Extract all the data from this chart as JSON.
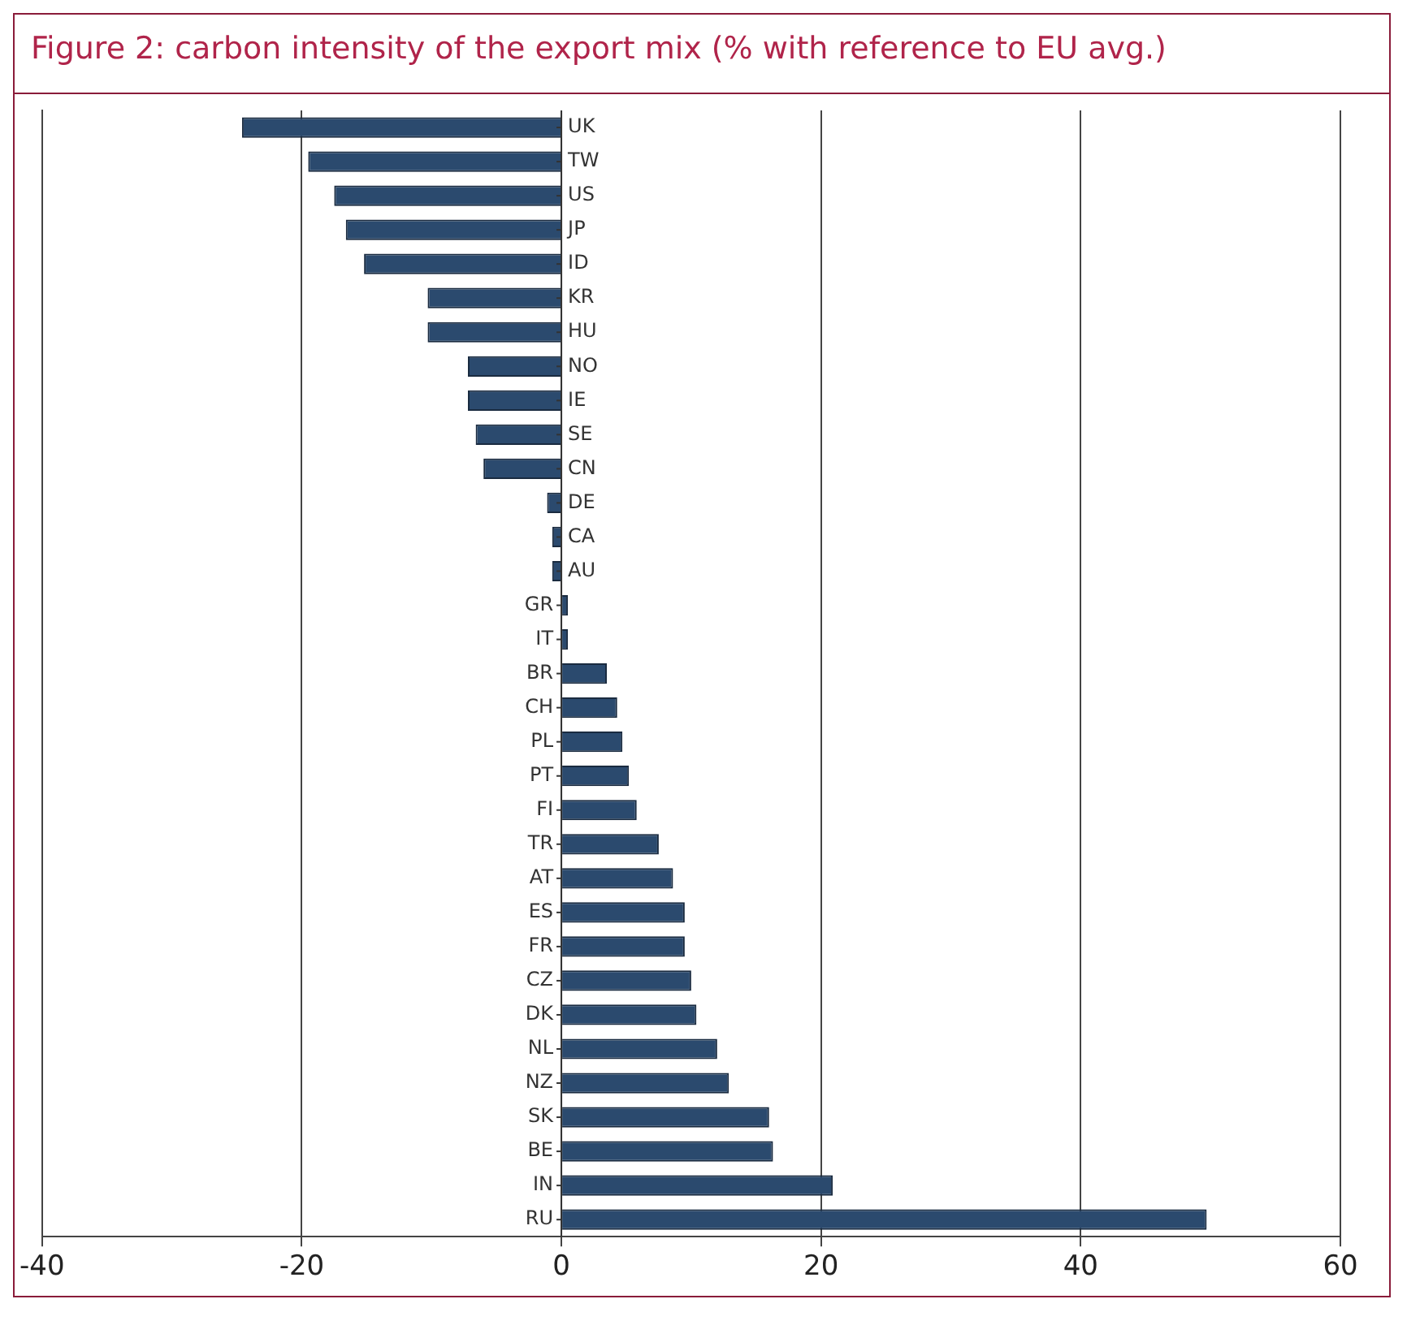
{
  "chart_data": {
    "type": "bar",
    "orientation": "horizontal",
    "title": "Figure 2: carbon intensity of the export mix (% with reference to EU avg.)",
    "categories": [
      "UK",
      "TW",
      "US",
      "JP",
      "ID",
      "KR",
      "HU",
      "NO",
      "IE",
      "SE",
      "CN",
      "DE",
      "CA",
      "AU",
      "GR",
      "IT",
      "BR",
      "CH",
      "PL",
      "PT",
      "FI",
      "TR",
      "AT",
      "ES",
      "FR",
      "CZ",
      "DK",
      "NL",
      "NZ",
      "SK",
      "BE",
      "IN",
      "RU"
    ],
    "values": [
      -24.6,
      -19.5,
      -17.5,
      -16.6,
      -15.2,
      -10.3,
      -10.3,
      -7.2,
      -7.2,
      -6.6,
      -6.0,
      -1.1,
      -0.7,
      -0.7,
      0.5,
      0.5,
      3.5,
      4.3,
      4.7,
      5.2,
      5.8,
      7.5,
      8.6,
      9.5,
      9.5,
      10.0,
      10.4,
      12.0,
      12.9,
      16.0,
      16.3,
      20.9,
      49.7
    ],
    "color": "#2b4a6e",
    "xlim": [
      -40,
      60
    ],
    "xticks": [
      -40,
      -20,
      0,
      20,
      40,
      60
    ],
    "grid": "x"
  }
}
